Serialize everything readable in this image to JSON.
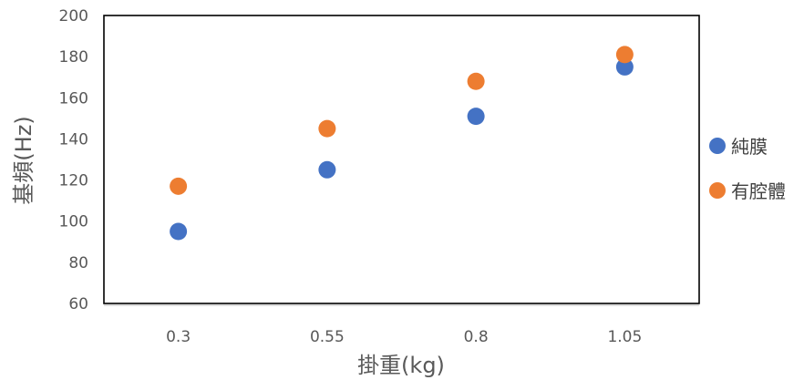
{
  "chart_data": {
    "type": "scatter",
    "title": "",
    "xlabel": "掛重(kg)",
    "ylabel": "基頻(Hz)",
    "categories": [
      "0.3",
      "0.55",
      "0.8",
      "1.05"
    ],
    "ylim": [
      60,
      200
    ],
    "yticks": [
      60,
      80,
      100,
      120,
      140,
      160,
      180,
      200
    ],
    "legend_position": "right",
    "series": [
      {
        "name": "純膜",
        "color": "#4472C4",
        "values": [
          95,
          125,
          151,
          175
        ]
      },
      {
        "name": "有腔體",
        "color": "#ED7D31",
        "values": [
          117,
          145,
          168,
          181
        ]
      }
    ]
  }
}
